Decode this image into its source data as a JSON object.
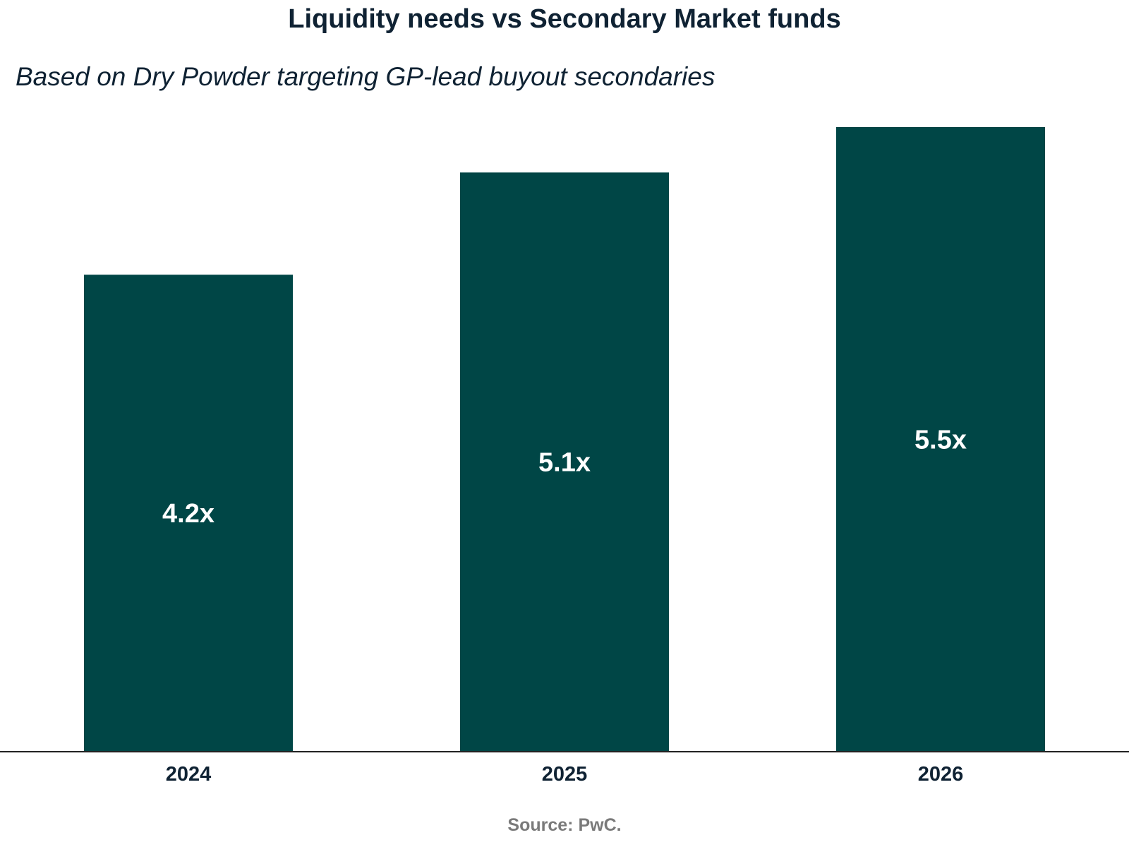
{
  "chart_data": {
    "type": "bar",
    "title": "Liquidity needs vs Secondary Market funds",
    "subtitle": "Based on Dry Powder targeting GP-lead buyout secondaries",
    "categories": [
      "2024",
      "2025",
      "2026"
    ],
    "values": [
      4.2,
      5.1,
      5.5
    ],
    "value_labels": [
      "4.2x",
      "5.1x",
      "5.5x"
    ],
    "xlabel": "",
    "ylabel": "",
    "ylim": [
      0,
      5.5
    ],
    "grid": false,
    "legend": "none",
    "bar_color": "#004646",
    "label_color": "#ffffff",
    "source": "Source: PwC."
  }
}
